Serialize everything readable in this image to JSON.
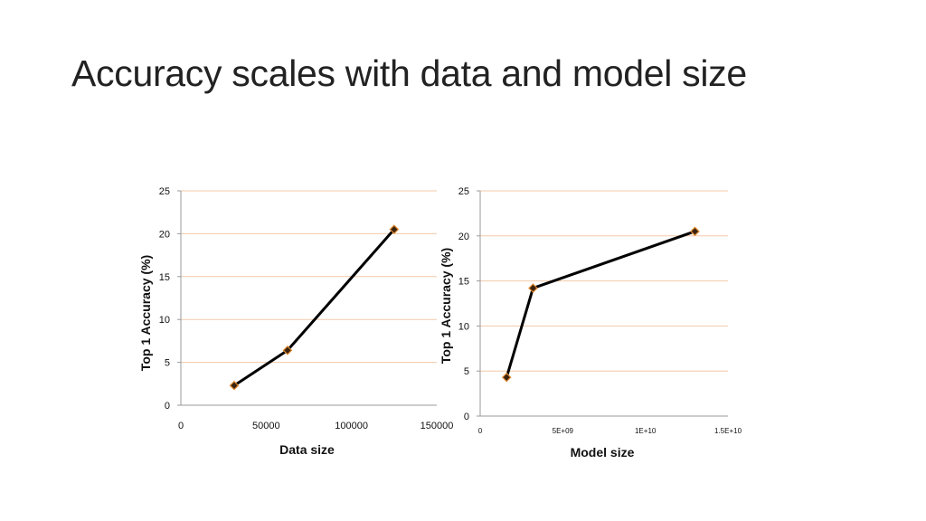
{
  "slide": {
    "title": "Accuracy scales with data and model size"
  },
  "chart_data": [
    {
      "type": "line",
      "xlabel": "Data size",
      "ylabel": "Top 1 Accuracy (%)",
      "xlim": [
        0,
        150000
      ],
      "ylim": [
        0,
        25
      ],
      "x_ticks": [
        0,
        50000,
        100000,
        150000
      ],
      "x_tick_labels": [
        "0",
        "50000",
        "100000",
        "150000"
      ],
      "y_ticks": [
        0,
        5,
        10,
        15,
        20,
        25
      ],
      "y_tick_labels": [
        "0",
        "5",
        "10",
        "15",
        "20",
        "25"
      ],
      "grid": "horizontal",
      "series": [
        {
          "x": [
            31250,
            62500,
            125000
          ],
          "y": [
            2.3,
            6.4,
            20.5
          ]
        }
      ]
    },
    {
      "type": "line",
      "xlabel": "Model size",
      "ylabel": "Top 1 Accuracy (%)",
      "xlim": [
        0,
        15000000000
      ],
      "ylim": [
        0,
        25
      ],
      "x_ticks": [
        0,
        5000000000,
        10000000000,
        15000000000
      ],
      "x_tick_labels": [
        "0",
        "5E+09",
        "1E+10",
        "1.5E+10"
      ],
      "y_ticks": [
        0,
        5,
        10,
        15,
        20,
        25
      ],
      "y_tick_labels": [
        "0",
        "5",
        "10",
        "15",
        "20",
        "25"
      ],
      "grid": "horizontal",
      "series": [
        {
          "x": [
            1600000000,
            3200000000,
            13000000000
          ],
          "y": [
            4.3,
            14.2,
            20.5
          ]
        }
      ]
    }
  ],
  "colors": {
    "grid": "#f3c9a8",
    "axis": "#9a9a9a",
    "line": "#000000",
    "marker_fill": "#3a2410",
    "marker_stroke": "#e08a30"
  }
}
